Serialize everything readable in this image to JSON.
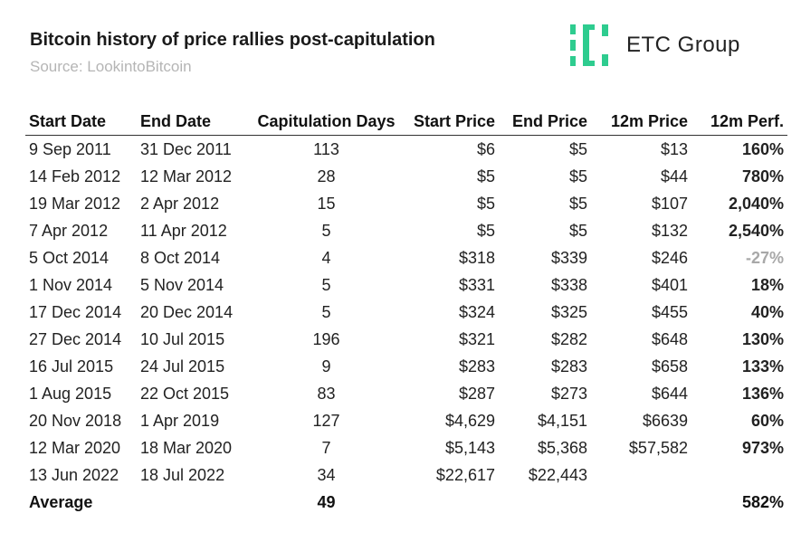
{
  "header": {
    "title": "Bitcoin history of price rallies post-capitulation",
    "subtitle": "Source: LookintoBitcoin"
  },
  "logo": {
    "text": "ETC Group",
    "icon": "etc-group-logo-icon",
    "color": "#2ecc8f"
  },
  "colors": {
    "positive": "#4a7fd6",
    "negative": "#a8a8a8"
  },
  "table": {
    "columns": [
      "Start Date",
      "End Date",
      "Capitulation Days",
      "Start Price",
      "End Price",
      "12m Price",
      "12m Perf."
    ],
    "rows": [
      [
        "9 Sep 2011",
        "31 Dec 2011",
        "113",
        "$6",
        "$5",
        "$13",
        "160%"
      ],
      [
        "14 Feb 2012",
        "12 Mar 2012",
        "28",
        "$5",
        "$5",
        "$44",
        "780%"
      ],
      [
        "19 Mar 2012",
        "2 Apr 2012",
        "15",
        "$5",
        "$5",
        "$107",
        "2,040%"
      ],
      [
        "7 Apr 2012",
        "11 Apr 2012",
        "5",
        "$5",
        "$5",
        "$132",
        "2,540%"
      ],
      [
        "5 Oct 2014",
        "8 Oct 2014",
        "4",
        "$318",
        "$339",
        "$246",
        "-27%"
      ],
      [
        "1 Nov 2014",
        "5 Nov 2014",
        "5",
        "$331",
        "$338",
        "$401",
        "18%"
      ],
      [
        "17 Dec 2014",
        "20 Dec 2014",
        "5",
        "$324",
        "$325",
        "$455",
        "40%"
      ],
      [
        "27 Dec 2014",
        "10 Jul 2015",
        "196",
        "$321",
        "$282",
        "$648",
        "130%"
      ],
      [
        "16 Jul 2015",
        "24 Jul 2015",
        "9",
        "$283",
        "$283",
        "$658",
        "133%"
      ],
      [
        "1 Aug 2015",
        "22 Oct 2015",
        "83",
        "$287",
        "$273",
        "$644",
        "136%"
      ],
      [
        "20 Nov 2018",
        "1 Apr 2019",
        "127",
        "$4,629",
        "$4,151",
        "$6639",
        "60%"
      ],
      [
        "12 Mar 2020",
        "18 Mar 2020",
        "7",
        "$5,143",
        "$5,368",
        "$57,582",
        "973%"
      ],
      [
        "13 Jun 2022",
        "18 Jul 2022",
        "34",
        "$22,617",
        "$22,443",
        "",
        ""
      ]
    ],
    "average": [
      "Average",
      "",
      "49",
      "",
      "",
      "",
      "582%"
    ]
  }
}
